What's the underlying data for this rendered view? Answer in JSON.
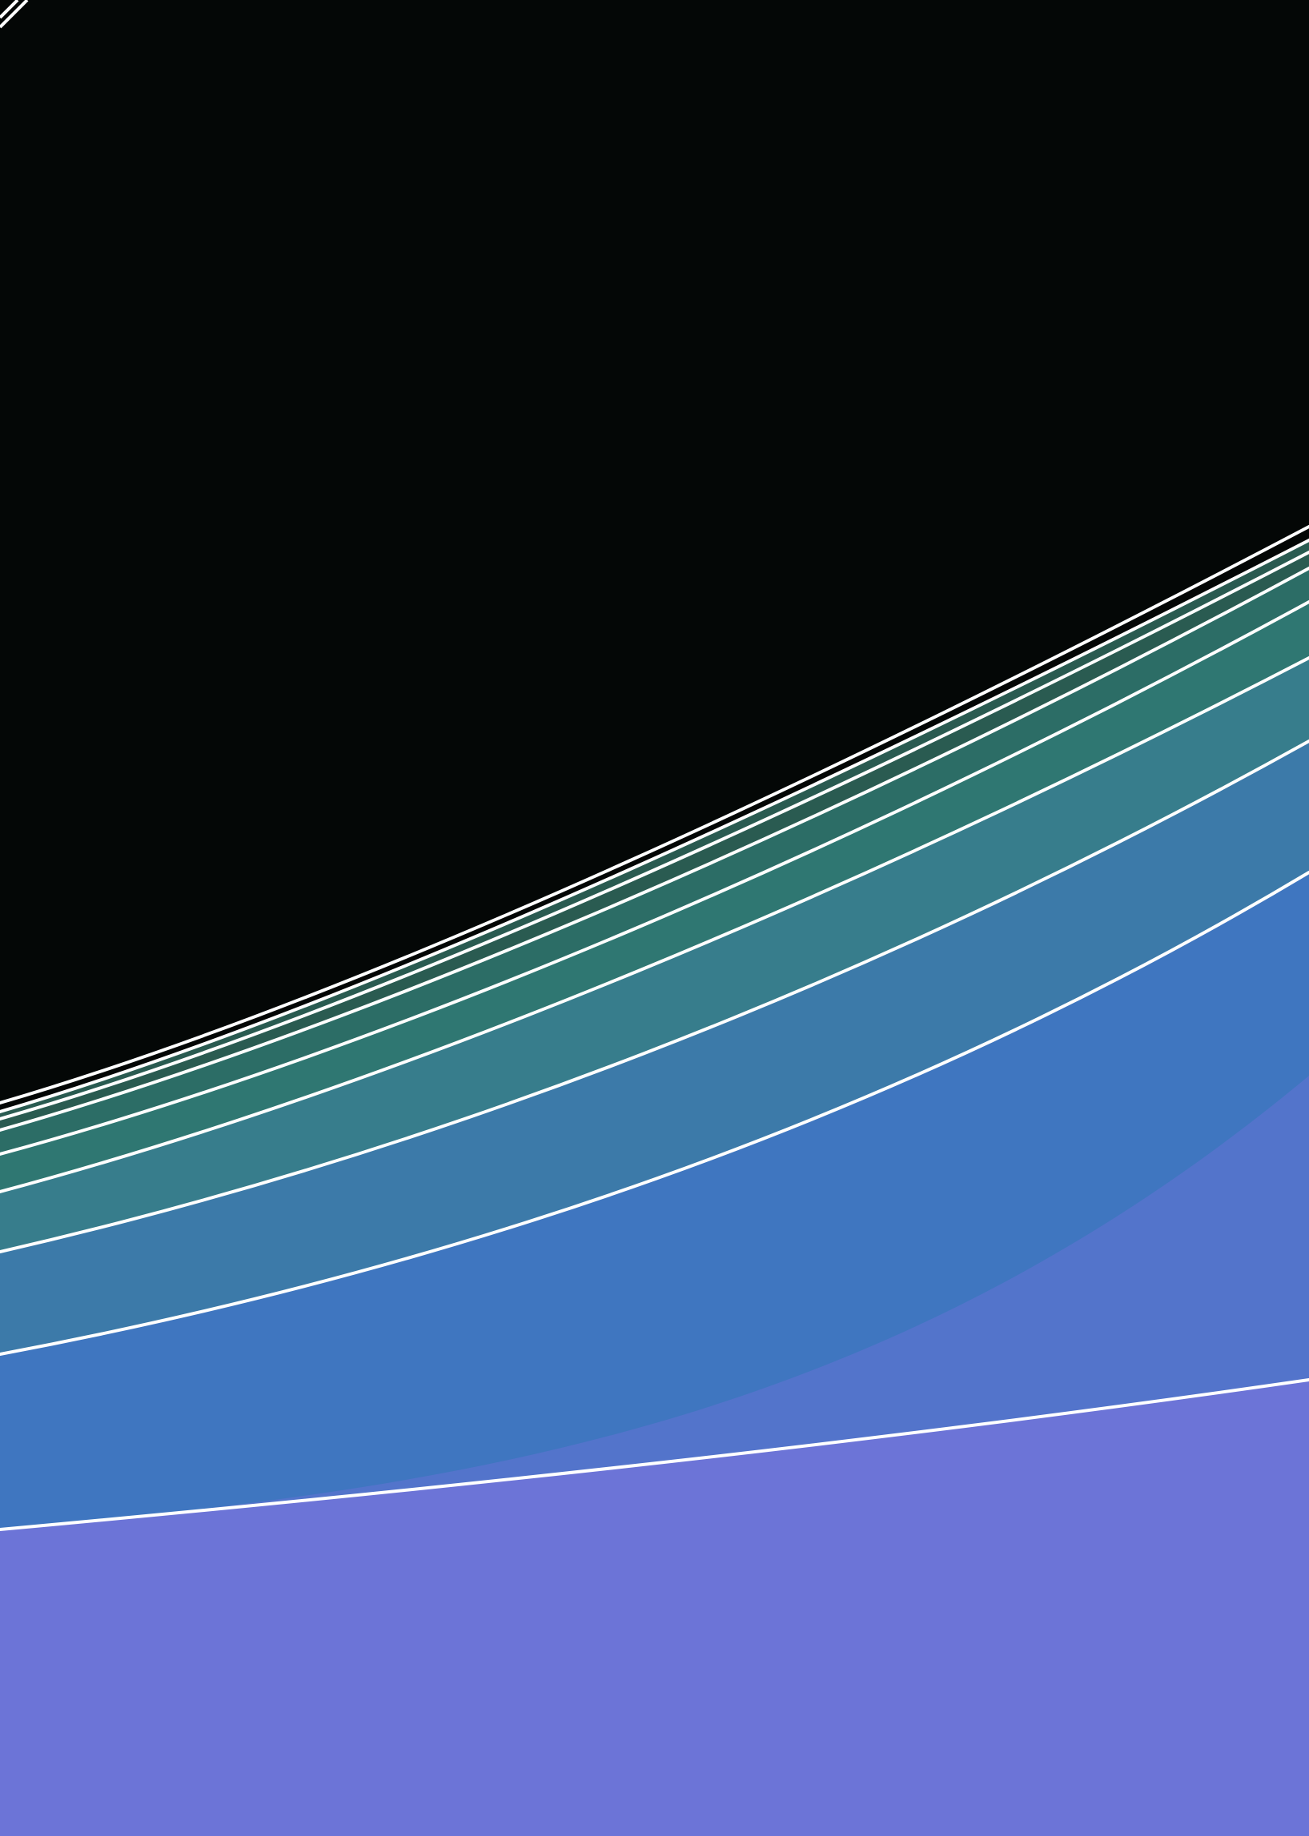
{
  "artwork": {
    "background": "#040706",
    "edge_color": "#ffffff",
    "bands": [
      {
        "name": "deep-green",
        "color": "#2a5b51"
      },
      {
        "name": "green",
        "color": "#2c6d66"
      },
      {
        "name": "teal",
        "color": "#2f7772"
      },
      {
        "name": "teal-blue",
        "color": "#377d8c"
      },
      {
        "name": "steel-blue",
        "color": "#3c7aa9"
      },
      {
        "name": "blue",
        "color": "#3f76c0"
      },
      {
        "name": "indigo",
        "color": "#5374cb"
      },
      {
        "name": "violet",
        "color": "#6c74d7"
      }
    ]
  }
}
